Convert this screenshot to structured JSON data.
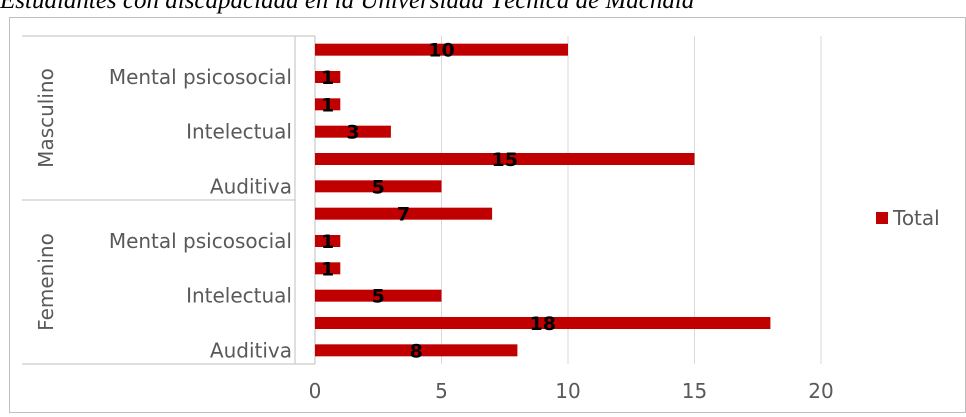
{
  "title": "Estudiantes con discapacidad en la Universidad Técnica de Machala",
  "colors": {
    "bar": "#c00000",
    "grid": "#d9d9d9",
    "axis": "#bfbfbf",
    "text": "#595959"
  },
  "chart_data": {
    "type": "bar",
    "orientation": "horizontal",
    "groups": [
      {
        "name": "Masculino",
        "rows": [
          {
            "label": "",
            "value": 10
          },
          {
            "label": "Mental psicosocial",
            "value": 1
          },
          {
            "label": "",
            "value": 1
          },
          {
            "label": "Intelectual",
            "value": 3
          },
          {
            "label": "",
            "value": 15
          },
          {
            "label": "Auditiva",
            "value": 5
          }
        ]
      },
      {
        "name": "Femenino",
        "rows": [
          {
            "label": "",
            "value": 7
          },
          {
            "label": "Mental psicosocial",
            "value": 1
          },
          {
            "label": "",
            "value": 1
          },
          {
            "label": "Intelectual",
            "value": 5
          },
          {
            "label": "",
            "value": 18
          },
          {
            "label": "Auditiva",
            "value": 8
          }
        ]
      }
    ],
    "series": [
      {
        "name": "Total"
      }
    ],
    "xlim": [
      0,
      20
    ],
    "xticks": [
      "0",
      "5",
      "10",
      "15",
      "20"
    ],
    "grid": "vertical",
    "legend": "right"
  }
}
